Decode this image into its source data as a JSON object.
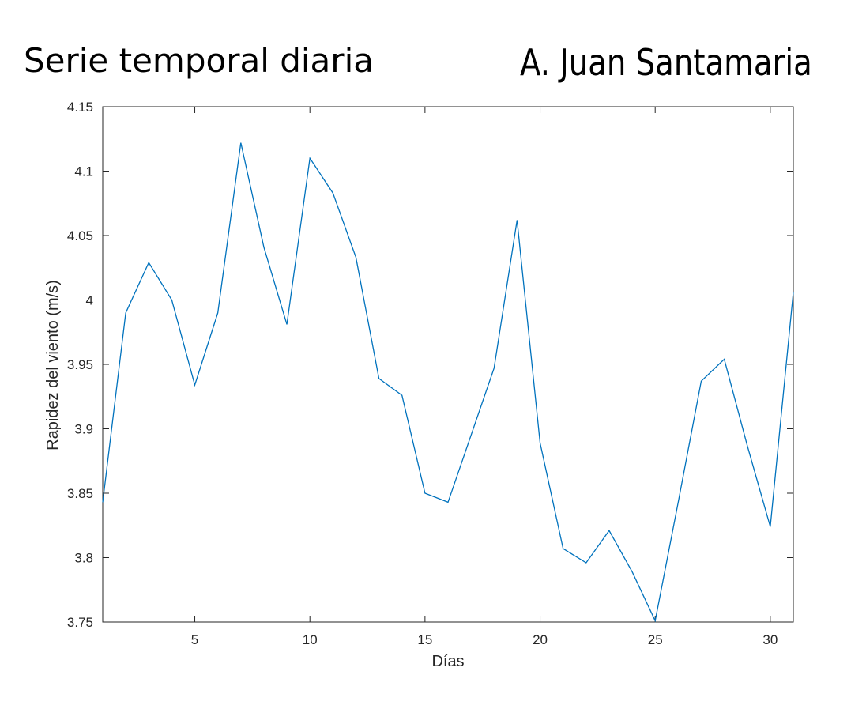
{
  "header": {
    "title_left": "Serie temporal diaria",
    "title_right": "A. Juan Santamaria"
  },
  "chart_data": {
    "type": "line",
    "title": "",
    "xlabel": "Días",
    "ylabel": "Rapidez del viento (m/s)",
    "xlim": [
      1,
      31
    ],
    "ylim": [
      3.75,
      4.15
    ],
    "xticks": [
      5,
      10,
      15,
      20,
      25,
      30
    ],
    "xtick_labels": [
      "5",
      "10",
      "15",
      "20",
      "25",
      "30"
    ],
    "yticks": [
      3.75,
      3.8,
      3.85,
      3.9,
      3.95,
      4,
      4.05,
      4.1,
      4.15
    ],
    "ytick_labels": [
      "3.75",
      "3.8",
      "3.85",
      "3.9",
      "3.95",
      "4",
      "4.05",
      "4.1",
      "4.15"
    ],
    "grid": false,
    "line_color": "#0072BD",
    "series": [
      {
        "x": [
          1,
          2,
          3,
          4,
          5,
          6,
          7,
          8,
          9,
          10,
          11,
          12,
          13,
          14,
          15,
          16,
          17,
          18,
          19,
          20,
          21,
          22,
          23,
          24,
          25,
          26,
          27,
          28,
          29,
          30,
          31
        ],
        "values": [
          3.843,
          3.99,
          4.029,
          4.0,
          3.934,
          3.99,
          4.122,
          4.041,
          3.981,
          4.11,
          4.083,
          4.033,
          3.939,
          3.926,
          3.85,
          3.843,
          3.895,
          3.947,
          4.062,
          3.889,
          3.807,
          3.796,
          3.821,
          3.789,
          3.751,
          3.843,
          3.937,
          3.954,
          3.887,
          3.824,
          4.006
        ]
      }
    ]
  }
}
